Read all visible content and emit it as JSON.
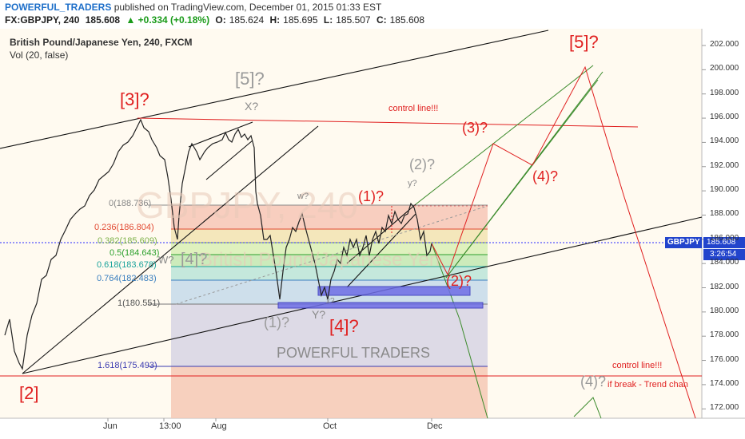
{
  "header": {
    "author": "POWERFUL_TRADERS",
    "published_text": "published on TradingView.com, December 01, 2015 01:33 EST",
    "symbol": "FX:GBPJPY, 240",
    "last": "185.608",
    "change": "▲ +0.334 (+0.18%)",
    "o_label": "O:",
    "o": "185.624",
    "h_label": "H:",
    "h": "185.695",
    "l_label": "L:",
    "l": "185.507",
    "c_label": "C:",
    "c": "185.608"
  },
  "legend": {
    "title": "British Pound/Japanese Yen, 240, FXCM",
    "indicator": "Vol (20, false)"
  },
  "watermark": {
    "symbol": "GBPJPY, 240",
    "name": "British Pound/Japanese Yen",
    "text": "POWERFUL TRADERS"
  },
  "price_axis": {
    "ticks": [
      "202.000",
      "200.000",
      "198.000",
      "196.000",
      "194.000",
      "192.000",
      "190.000",
      "188.000",
      "186.000",
      "184.000",
      "182.000",
      "180.000",
      "178.000",
      "176.000",
      "174.000",
      "172.000"
    ],
    "current_label": "GBPJPY",
    "current_price": "185.608",
    "countdown": "3:26:54"
  },
  "time_axis": {
    "ticks": [
      "Jun",
      "13:00",
      "Aug",
      "Oct",
      "Dec"
    ]
  },
  "fibonacci": [
    {
      "label": "0(188.736)",
      "color": "#888888"
    },
    {
      "label": "0.236(186.804)",
      "color": "#e24a33"
    },
    {
      "label": "0.382(185.609)",
      "color": "#7fb24a"
    },
    {
      "label": "0.5(184.643)",
      "color": "#2ca02c"
    },
    {
      "label": "0.618(183.678)",
      "color": "#1aa39b"
    },
    {
      "label": "0.764(182.483)",
      "color": "#3a7fbf"
    },
    {
      "label": "1(180.551)",
      "color": "#777777"
    },
    {
      "label": "1.618(175.493)",
      "color": "#3a3ab0"
    }
  ],
  "annotations": {
    "w5_big": "[5]?",
    "w5_gray": "[5]?",
    "w3": "[3]?",
    "x1": "X?",
    "w2": "[2]",
    "w4_big": "[4]?",
    "w4_gray": "[4]?",
    "w_small": "w?",
    "w_small2": "W?",
    "y_small": "y?",
    "y_big": "Y?",
    "x_small": "x?",
    "c1_red": "(1)?",
    "c2_gray": "(2)?",
    "c3_red": "(3)?",
    "c4_red": "(4)?",
    "c2_red": "(2)?",
    "c1_gray": "(1)?",
    "c4_gray": "(4)?",
    "control1": "control line!!!",
    "control2": "control line!!!",
    "break_note": "if break - Trend chan"
  },
  "colors": {
    "red": "#e02020",
    "gray": "#9a9a9a",
    "blue_box": "#5555dd",
    "green": "#3a8a2a"
  }
}
